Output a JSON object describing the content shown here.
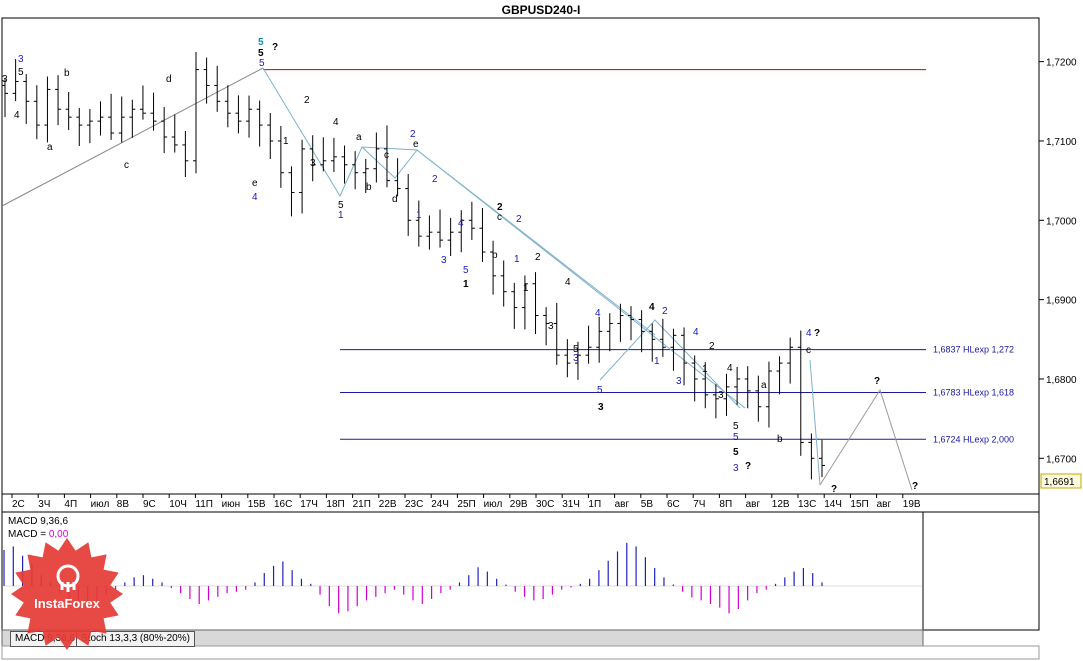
{
  "window": {
    "title": "GBPUSD240-I"
  },
  "chart_data": {
    "type": "ohlc",
    "symbol": "GBPUSD240-I",
    "ylim": [
      1.6655,
      1.7255
    ],
    "y_ticks": [
      "1,7200",
      "1,7100",
      "1,7000",
      "1,6900",
      "1,6800",
      "1,6700"
    ],
    "current_price": "1,6691",
    "x_ticks": [
      "2С",
      "3Ч",
      "4П",
      "июл",
      "8В",
      "9С",
      "10Ч",
      "11П",
      "июн",
      "15В",
      "16С",
      "17Ч",
      "18П",
      "21П",
      "22В",
      "23С",
      "24Ч",
      "25П",
      "июл",
      "29В",
      "30С",
      "31Ч",
      "1П",
      "авг",
      "5В",
      "6С",
      "7Ч",
      "8П",
      "авг",
      "12В",
      "13С",
      "14Ч",
      "15П",
      "авг",
      "19В"
    ],
    "close_path": [
      1.716,
      1.7175,
      1.715,
      1.712,
      1.7165,
      1.714,
      1.713,
      1.712,
      1.7125,
      1.713,
      1.711,
      1.713,
      1.714,
      1.7135,
      1.7125,
      1.7105,
      1.7095,
      1.7075,
      1.719,
      1.717,
      1.715,
      1.7135,
      1.7125,
      1.714,
      1.712,
      1.71,
      1.706,
      1.7035,
      1.709,
      1.707,
      1.7075,
      1.708,
      1.707,
      1.706,
      1.7065,
      1.709,
      1.705,
      1.704,
      1.7,
      1.698,
      1.6985,
      1.6975,
      1.6985,
      1.7,
      1.699,
      1.696,
      1.693,
      1.691,
      1.689,
      1.692,
      1.688,
      1.687,
      1.683,
      1.682,
      1.683,
      1.684,
      1.686,
      1.687,
      1.688,
      1.6875,
      1.686,
      1.685,
      1.684,
      1.6855,
      1.682,
      1.68,
      1.678,
      1.6775,
      1.679,
      1.68,
      1.6785,
      1.6765,
      1.681,
      1.682,
      1.684,
      1.672,
      1.67,
      1.6691
    ],
    "levels": [
      {
        "value": 1.6837,
        "label": "1,6837 HLexp 1,272"
      },
      {
        "value": 1.6783,
        "label": "1,6783 HLexp 1,618"
      },
      {
        "value": 1.6724,
        "label": "1,6724 HLexp 2,000"
      }
    ],
    "resistance_line": {
      "value": 1.719,
      "color": "#cc0000"
    },
    "wave_labels": [
      {
        "text": "3",
        "color": "blue"
      },
      {
        "text": "5",
        "color": "black"
      },
      {
        "text": "3",
        "color": "black"
      },
      {
        "text": "4",
        "color": "black"
      },
      {
        "text": "a",
        "color": "black"
      },
      {
        "text": "b",
        "color": "black"
      },
      {
        "text": "c",
        "color": "black"
      },
      {
        "text": "d",
        "color": "black"
      },
      {
        "text": "5",
        "color": "teal"
      },
      {
        "text": "5",
        "color": "black"
      },
      {
        "text": "5",
        "color": "blue"
      },
      {
        "text": "?",
        "color": "black"
      },
      {
        "text": "e",
        "color": "black"
      },
      {
        "text": "4",
        "color": "blue"
      },
      {
        "text": "2",
        "color": "black"
      },
      {
        "text": "1",
        "color": "black"
      },
      {
        "text": "4",
        "color": "black"
      },
      {
        "text": "3",
        "color": "black"
      },
      {
        "text": "5",
        "color": "black"
      },
      {
        "text": "1",
        "color": "blue"
      },
      {
        "text": "a",
        "color": "black"
      },
      {
        "text": "b",
        "color": "black"
      },
      {
        "text": "c",
        "color": "black"
      },
      {
        "text": "d",
        "color": "black"
      },
      {
        "text": "2",
        "color": "blue"
      },
      {
        "text": "e",
        "color": "black"
      },
      {
        "text": "1",
        "color": "blue"
      },
      {
        "text": "2",
        "color": "blue"
      },
      {
        "text": "4",
        "color": "blue"
      },
      {
        "text": "3",
        "color": "blue"
      },
      {
        "text": "5",
        "color": "blue"
      },
      {
        "text": "1",
        "color": "black"
      },
      {
        "text": "2",
        "color": "black"
      },
      {
        "text": "c",
        "color": "black"
      },
      {
        "text": "b",
        "color": "black"
      },
      {
        "text": "2",
        "color": "blue"
      },
      {
        "text": "1",
        "color": "blue"
      },
      {
        "text": "2",
        "color": "black"
      },
      {
        "text": "1",
        "color": "black"
      },
      {
        "text": "4",
        "color": "black"
      },
      {
        "text": "3",
        "color": "black"
      },
      {
        "text": "4",
        "color": "blue"
      },
      {
        "text": "5",
        "color": "black"
      },
      {
        "text": "3",
        "color": "blue"
      },
      {
        "text": "5",
        "color": "blue"
      },
      {
        "text": "3",
        "color": "black"
      },
      {
        "text": "4",
        "color": "black"
      },
      {
        "text": "2",
        "color": "blue"
      },
      {
        "text": "1",
        "color": "blue"
      },
      {
        "text": "4",
        "color": "blue"
      },
      {
        "text": "3",
        "color": "blue"
      },
      {
        "text": "2",
        "color": "black"
      },
      {
        "text": "1",
        "color": "black"
      },
      {
        "text": "4",
        "color": "black"
      },
      {
        "text": "3",
        "color": "black"
      },
      {
        "text": "5",
        "color": "black"
      },
      {
        "text": "5",
        "color": "blue"
      },
      {
        "text": "5",
        "color": "black"
      },
      {
        "text": "3",
        "color": "blue"
      },
      {
        "text": "?",
        "color": "black"
      },
      {
        "text": "a",
        "color": "black"
      },
      {
        "text": "b",
        "color": "black"
      },
      {
        "text": "4",
        "color": "blue"
      },
      {
        "text": "?",
        "color": "black"
      },
      {
        "text": "c",
        "color": "black"
      },
      {
        "text": "?",
        "color": "black"
      },
      {
        "text": "?",
        "color": "black"
      },
      {
        "text": "?",
        "color": "black"
      }
    ],
    "macd": {
      "label1": "MACD 9,36,6",
      "label2_prefix": "MACD = ",
      "label2_value": "0,00",
      "values": [
        50,
        55,
        42,
        30,
        15,
        5,
        -10,
        -25,
        -32,
        -28,
        -20,
        -12,
        -5,
        5,
        12,
        15,
        10,
        5,
        -3,
        -10,
        -18,
        -25,
        -20,
        -15,
        -10,
        -8,
        -5,
        5,
        18,
        28,
        34,
        22,
        10,
        3,
        -12,
        -28,
        -38,
        -35,
        -28,
        -20,
        -15,
        -10,
        -5,
        -12,
        -20,
        -25,
        -18,
        -10,
        -5,
        5,
        15,
        26,
        20,
        10,
        2,
        -8,
        -15,
        -20,
        -18,
        -12,
        -5,
        -2,
        3,
        10,
        22,
        35,
        48,
        60,
        55,
        40,
        25,
        12,
        2,
        -8,
        -16,
        -20,
        -25,
        -30,
        -38,
        -32,
        -20,
        -10,
        -5,
        3,
        12,
        20,
        25,
        18,
        5
      ]
    }
  },
  "tabs": [
    {
      "label": "MACD 9,36,6"
    },
    {
      "label": "Stoch 13,3,3 (80%-20%)"
    }
  ],
  "brand": {
    "name": "InstaForex",
    "color": "#e53935"
  }
}
